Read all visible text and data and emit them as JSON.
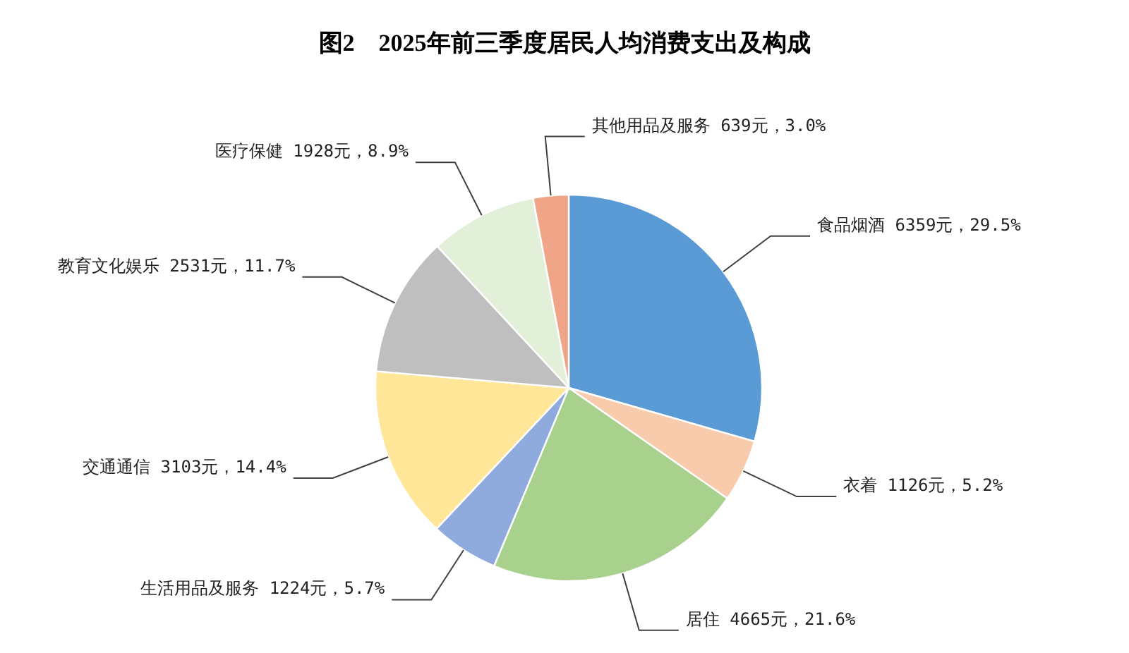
{
  "chart_data": {
    "type": "pie",
    "title": "图2　2025年前三季度居民人均消费支出及构成",
    "categories": [
      "食品烟酒",
      "衣着",
      "居住",
      "生活用品及服务",
      "交通通信",
      "教育文化娱乐",
      "医疗保健",
      "其他用品及服务"
    ],
    "values": [
      6359,
      1126,
      4665,
      1224,
      3103,
      2531,
      1928,
      639
    ],
    "value_labels": [
      "6359元，29.5%",
      "1126元，5.2%",
      "4665元，21.6%",
      "1224元，5.7%",
      "3103元，14.4%",
      "2531元，11.7%",
      "1928元，8.9%",
      "639元，3.0%"
    ],
    "colors": [
      "#5b9bd5",
      "#f8cbad",
      "#a9d18e",
      "#8faadc",
      "#ffe699",
      "#bfbfbf",
      "#e2f0d9",
      "#f0a589"
    ]
  }
}
